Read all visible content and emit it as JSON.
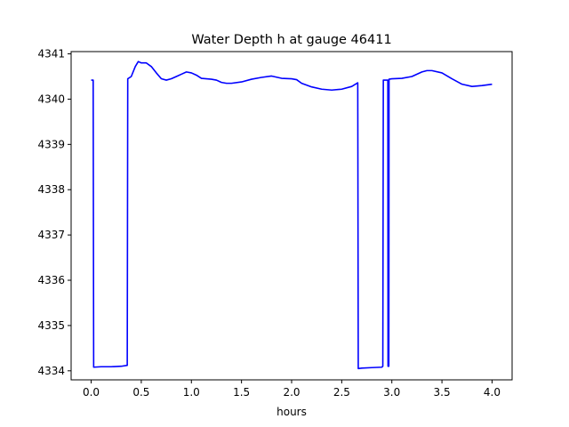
{
  "chart_data": {
    "type": "line",
    "title": "Water Depth h at gauge 46411",
    "xlabel": "hours",
    "ylabel": "",
    "xlim": [
      -0.2,
      4.2
    ],
    "ylim": [
      4333.8,
      4341.05
    ],
    "xticks": [
      0.0,
      0.5,
      1.0,
      1.5,
      2.0,
      2.5,
      3.0,
      3.5,
      4.0
    ],
    "xtick_labels": [
      "0.0",
      "0.5",
      "1.0",
      "1.5",
      "2.0",
      "2.5",
      "3.0",
      "3.5",
      "4.0"
    ],
    "yticks": [
      4334,
      4335,
      4336,
      4337,
      4338,
      4339,
      4340,
      4341
    ],
    "ytick_labels": [
      "4334",
      "4335",
      "4336",
      "4337",
      "4338",
      "4339",
      "4340",
      "4341"
    ],
    "grid": false,
    "series": [
      {
        "color": "#0000ff",
        "x": [
          0.0,
          0.02,
          0.025,
          0.1,
          0.2,
          0.3,
          0.36,
          0.365,
          0.4,
          0.44,
          0.47,
          0.5,
          0.55,
          0.6,
          0.65,
          0.7,
          0.75,
          0.8,
          0.85,
          0.9,
          0.95,
          1.0,
          1.05,
          1.1,
          1.15,
          1.2,
          1.25,
          1.3,
          1.35,
          1.4,
          1.5,
          1.6,
          1.7,
          1.8,
          1.9,
          2.0,
          2.05,
          2.1,
          2.2,
          2.3,
          2.4,
          2.5,
          2.6,
          2.66,
          2.665,
          2.7,
          2.8,
          2.9,
          2.91,
          2.915,
          2.96,
          2.962,
          2.97,
          2.972,
          3.0,
          3.1,
          3.2,
          3.3,
          3.35,
          3.4,
          3.5,
          3.6,
          3.7,
          3.8,
          3.9,
          4.0
        ],
        "y": [
          4340.42,
          4340.42,
          4334.08,
          4334.09,
          4334.09,
          4334.1,
          4334.12,
          4340.45,
          4340.5,
          4340.72,
          4340.83,
          4340.8,
          4340.8,
          4340.72,
          4340.58,
          4340.45,
          4340.42,
          4340.45,
          4340.5,
          4340.55,
          4340.6,
          4340.58,
          4340.53,
          4340.46,
          4340.45,
          4340.44,
          4340.42,
          4340.37,
          4340.35,
          4340.35,
          4340.38,
          4340.44,
          4340.48,
          4340.51,
          4340.46,
          4340.45,
          4340.43,
          4340.35,
          4340.27,
          4340.22,
          4340.2,
          4340.22,
          4340.28,
          4340.36,
          4334.05,
          4334.06,
          4334.07,
          4334.08,
          4334.1,
          4340.42,
          4340.42,
          4334.1,
          4334.1,
          4340.44,
          4340.45,
          4340.46,
          4340.5,
          4340.6,
          4340.63,
          4340.63,
          4340.58,
          4340.45,
          4340.33,
          4340.28,
          4340.3,
          4340.33
        ]
      }
    ]
  }
}
